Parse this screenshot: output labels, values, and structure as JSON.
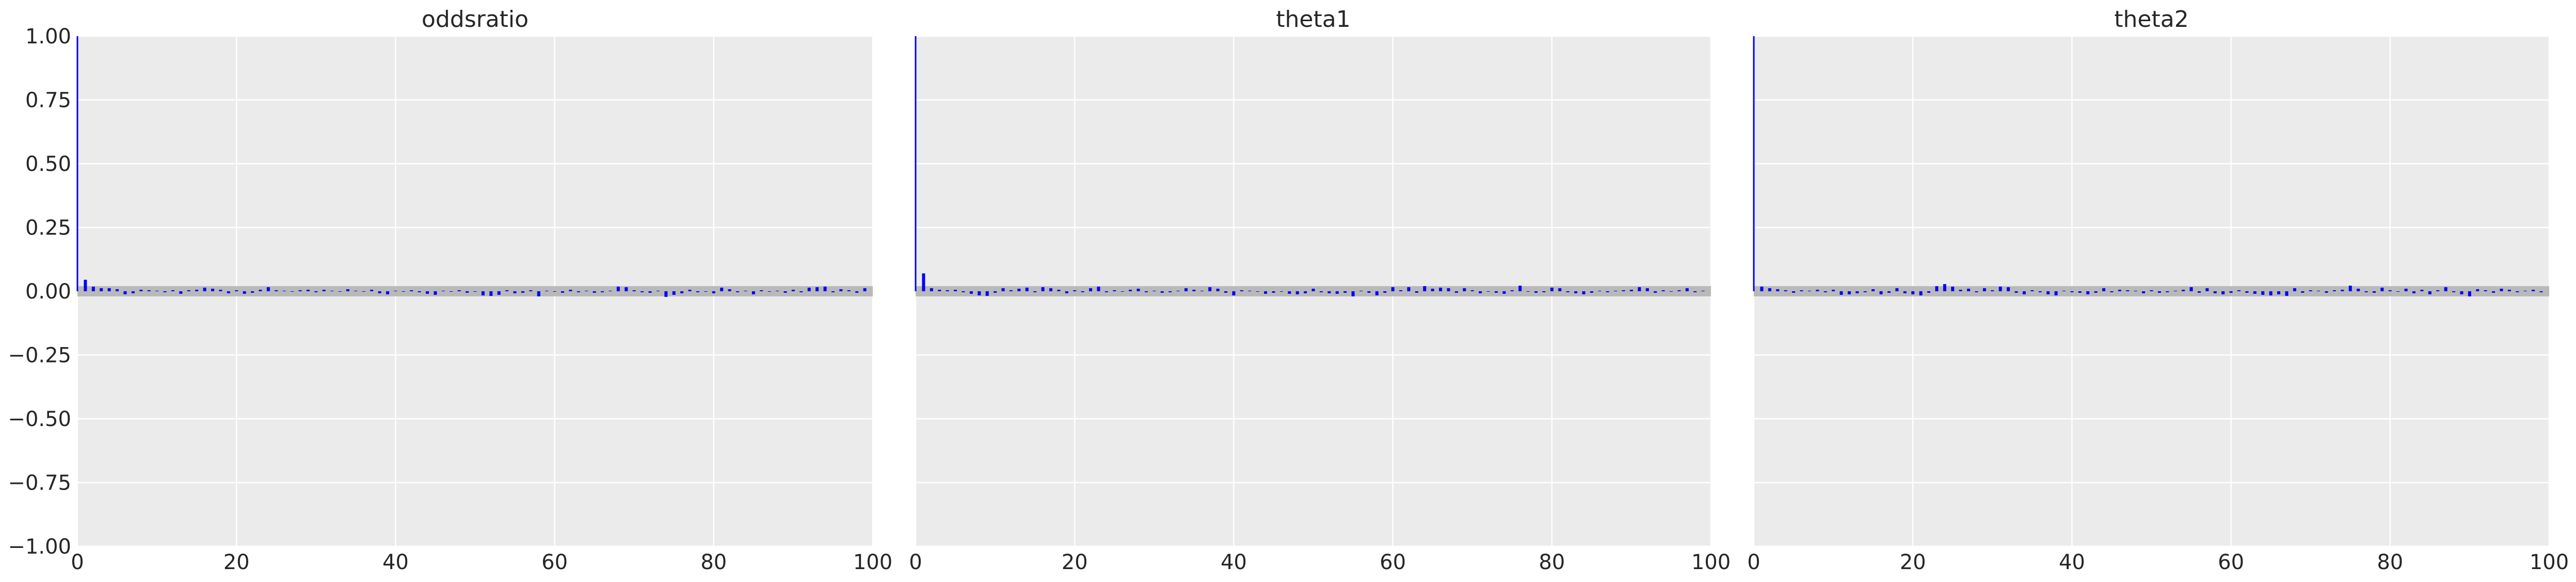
{
  "chart_data": {
    "type": "bar",
    "subtype": "autocorrelation",
    "ylim": [
      -1.0,
      1.0
    ],
    "xlim": [
      0,
      100
    ],
    "x_ticks": [
      0,
      20,
      40,
      60,
      80,
      100
    ],
    "y_ticks": [
      -1.0,
      -0.75,
      -0.5,
      -0.25,
      0.0,
      0.25,
      0.5,
      0.75,
      1.0
    ],
    "x_tick_labels": [
      "0",
      "20",
      "40",
      "60",
      "80",
      "100"
    ],
    "y_tick_labels": [
      "−1.00",
      "−0.75",
      "−0.50",
      "−0.25",
      "0.00",
      "0.25",
      "0.50",
      "0.75",
      "1.00"
    ],
    "confidence_band": [
      -0.02,
      0.02
    ],
    "grid": true,
    "colors": {
      "bars": "#0000ff",
      "band": "#b9b9b9",
      "panel": "#ebebeb",
      "grid": "#ffffff"
    },
    "panels": [
      {
        "title": "oddsratio",
        "lags": [
          0,
          1,
          2,
          3,
          4,
          5,
          6,
          7,
          8,
          9,
          10,
          11,
          12,
          13,
          14,
          15,
          16,
          17,
          18,
          19,
          20,
          21,
          22,
          23,
          24,
          25,
          26,
          27,
          28,
          29,
          30,
          31,
          32,
          33,
          34,
          35,
          36,
          37,
          38,
          39,
          40,
          41,
          42,
          43,
          44,
          45,
          46,
          47,
          48,
          49,
          50,
          51,
          52,
          53,
          54,
          55,
          56,
          57,
          58,
          59,
          60,
          61,
          62,
          63,
          64,
          65,
          66,
          67,
          68,
          69,
          70,
          71,
          72,
          73,
          74,
          75,
          76,
          77,
          78,
          79,
          80,
          81,
          82,
          83,
          84,
          85,
          86,
          87,
          88,
          89,
          90,
          91,
          92,
          93,
          94,
          95,
          96,
          97,
          98,
          99
        ],
        "values": [
          1.0,
          0.045,
          0.018,
          0.012,
          0.012,
          0.008,
          -0.012,
          -0.008,
          0.006,
          0.004,
          0.002,
          -0.004,
          0.004,
          -0.01,
          0.004,
          0.006,
          0.014,
          0.01,
          0.006,
          -0.008,
          0.004,
          -0.01,
          -0.006,
          0.006,
          0.016,
          0.004,
          0.002,
          -0.002,
          0.004,
          0.006,
          -0.004,
          0.006,
          0.002,
          -0.002,
          0.008,
          0.002,
          -0.002,
          0.006,
          -0.008,
          -0.012,
          0.002,
          -0.002,
          0.004,
          -0.004,
          -0.01,
          -0.014,
          0.002,
          -0.002,
          0.004,
          -0.006,
          -0.002,
          -0.016,
          -0.018,
          -0.014,
          0.004,
          -0.008,
          -0.006,
          0.004,
          -0.02,
          0.002,
          -0.002,
          -0.006,
          0.006,
          -0.004,
          0.002,
          -0.006,
          -0.004,
          0.002,
          0.018,
          0.016,
          0.004,
          -0.004,
          -0.006,
          0.002,
          -0.022,
          -0.014,
          -0.008,
          0.006,
          -0.004,
          -0.002,
          -0.008,
          0.014,
          0.008,
          -0.004,
          0.002,
          -0.012,
          0.004,
          -0.002,
          0.002,
          -0.006,
          0.006,
          -0.004,
          0.014,
          0.016,
          0.018,
          -0.004,
          0.008,
          0.004,
          -0.006,
          0.012
        ]
      },
      {
        "title": "theta1",
        "lags": [
          0,
          1,
          2,
          3,
          4,
          5,
          6,
          7,
          8,
          9,
          10,
          11,
          12,
          13,
          14,
          15,
          16,
          17,
          18,
          19,
          20,
          21,
          22,
          23,
          24,
          25,
          26,
          27,
          28,
          29,
          30,
          31,
          32,
          33,
          34,
          35,
          36,
          37,
          38,
          39,
          40,
          41,
          42,
          43,
          44,
          45,
          46,
          47,
          48,
          49,
          50,
          51,
          52,
          53,
          54,
          55,
          56,
          57,
          58,
          59,
          60,
          61,
          62,
          63,
          64,
          65,
          66,
          67,
          68,
          69,
          70,
          71,
          72,
          73,
          74,
          75,
          76,
          77,
          78,
          79,
          80,
          81,
          82,
          83,
          84,
          85,
          86,
          87,
          88,
          89,
          90,
          91,
          92,
          93,
          94,
          95,
          96,
          97,
          98,
          99
        ],
        "values": [
          1.0,
          0.07,
          0.012,
          0.006,
          0.004,
          0.006,
          -0.004,
          -0.01,
          -0.016,
          -0.018,
          -0.006,
          0.012,
          0.004,
          0.01,
          0.014,
          -0.004,
          0.016,
          0.012,
          0.006,
          -0.008,
          0.004,
          -0.004,
          0.012,
          0.018,
          -0.004,
          0.004,
          -0.002,
          0.006,
          0.01,
          -0.004,
          0.002,
          -0.006,
          -0.004,
          0.002,
          0.012,
          0.006,
          0.002,
          0.016,
          0.01,
          -0.006,
          -0.016,
          0.004,
          0.002,
          -0.002,
          -0.01,
          -0.006,
          -0.002,
          -0.01,
          -0.012,
          -0.008,
          0.01,
          -0.004,
          -0.008,
          -0.01,
          -0.006,
          -0.02,
          0.002,
          -0.006,
          -0.016,
          -0.006,
          0.016,
          0.004,
          0.016,
          -0.006,
          0.02,
          0.01,
          0.014,
          0.012,
          -0.006,
          0.012,
          0.004,
          -0.008,
          -0.002,
          -0.006,
          -0.01,
          0.004,
          0.022,
          -0.002,
          -0.006,
          -0.004,
          0.014,
          0.012,
          -0.004,
          -0.008,
          -0.012,
          -0.006,
          0.002,
          -0.004,
          0.002,
          0.004,
          0.006,
          0.016,
          0.012,
          -0.006,
          0.004,
          -0.002,
          0.004,
          0.012,
          -0.004,
          0.002
        ]
      },
      {
        "title": "theta2",
        "lags": [
          0,
          1,
          2,
          3,
          4,
          5,
          6,
          7,
          8,
          9,
          10,
          11,
          12,
          13,
          14,
          15,
          16,
          17,
          18,
          19,
          20,
          21,
          22,
          23,
          24,
          25,
          26,
          27,
          28,
          29,
          30,
          31,
          32,
          33,
          34,
          35,
          36,
          37,
          38,
          39,
          40,
          41,
          42,
          43,
          44,
          45,
          46,
          47,
          48,
          49,
          50,
          51,
          52,
          53,
          54,
          55,
          56,
          57,
          58,
          59,
          60,
          61,
          62,
          63,
          64,
          65,
          66,
          67,
          68,
          69,
          70,
          71,
          72,
          73,
          74,
          75,
          76,
          77,
          78,
          79,
          80,
          81,
          82,
          83,
          84,
          85,
          86,
          87,
          88,
          89,
          90,
          91,
          92,
          93,
          94,
          95,
          96,
          97,
          98,
          99
        ],
        "values": [
          1.0,
          0.018,
          0.012,
          0.008,
          0.004,
          -0.006,
          0.004,
          0.002,
          0.006,
          -0.004,
          0.006,
          -0.014,
          -0.012,
          -0.008,
          -0.004,
          0.008,
          -0.012,
          -0.006,
          0.012,
          -0.008,
          -0.012,
          -0.016,
          -0.006,
          0.02,
          0.028,
          0.018,
          0.006,
          0.01,
          -0.004,
          0.012,
          0.004,
          0.018,
          0.016,
          -0.006,
          -0.012,
          0.004,
          -0.004,
          -0.012,
          -0.016,
          0.002,
          -0.004,
          -0.006,
          -0.012,
          -0.006,
          0.012,
          -0.004,
          0.006,
          0.004,
          0.002,
          -0.008,
          0.004,
          -0.006,
          -0.004,
          0.002,
          0.006,
          0.016,
          -0.006,
          0.012,
          -0.008,
          -0.012,
          -0.006,
          0.004,
          -0.006,
          -0.01,
          -0.014,
          -0.016,
          -0.012,
          -0.018,
          0.012,
          -0.006,
          0.004,
          0.002,
          -0.006,
          0.004,
          0.006,
          0.022,
          0.01,
          -0.004,
          -0.006,
          0.014,
          0.004,
          -0.002,
          0.01,
          -0.008,
          0.006,
          -0.012,
          0.004,
          0.016,
          -0.004,
          -0.012,
          -0.02,
          0.008,
          0.004,
          -0.006,
          0.01,
          0.006,
          -0.004,
          0.002,
          0.006,
          -0.004
        ]
      }
    ]
  }
}
